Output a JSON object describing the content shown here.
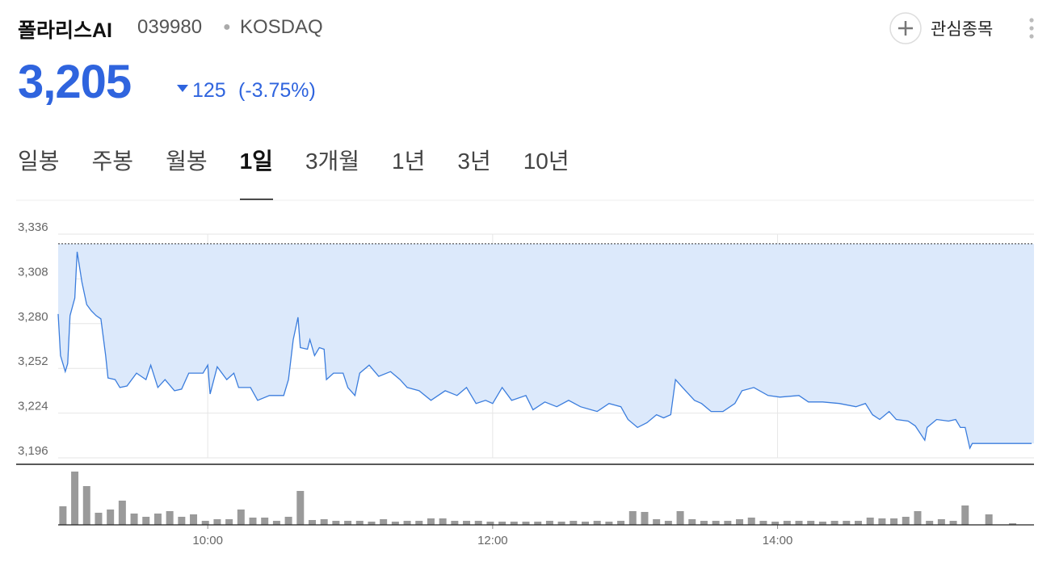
{
  "header": {
    "name": "폴라리스AI",
    "code": "039980",
    "market": "KOSDAQ",
    "watch_button": "관심종목"
  },
  "quote": {
    "price": "3,205",
    "change": "125",
    "change_percent": "(-3.75%)"
  },
  "tabs": [
    {
      "label": "일봉"
    },
    {
      "label": "주봉"
    },
    {
      "label": "월봉"
    },
    {
      "label": "1일",
      "selected": true
    },
    {
      "label": "3개월"
    },
    {
      "label": "1년"
    },
    {
      "label": "3년"
    },
    {
      "label": "10년"
    }
  ],
  "chart_data": [
    {
      "type": "line",
      "color": "#3b7ddd",
      "fill_color": "#dce9fb",
      "x": [
        537,
        538,
        540,
        541,
        542,
        544,
        545,
        547,
        549,
        551,
        553,
        555,
        557,
        558,
        561,
        563,
        566,
        570,
        574,
        576,
        579,
        582,
        586,
        589,
        592,
        598,
        600,
        601,
        604,
        608,
        611,
        613,
        618,
        621,
        626,
        632,
        634,
        636,
        638,
        639,
        642,
        643,
        645,
        647,
        649,
        650,
        653,
        657,
        659,
        662,
        664,
        668,
        672,
        677,
        681,
        684,
        689,
        694,
        700,
        705,
        709,
        713,
        717,
        720,
        724,
        728,
        734,
        737,
        742,
        747,
        752,
        757,
        764,
        769,
        774,
        777,
        781,
        785,
        789,
        792,
        795,
        797,
        800,
        805,
        808,
        812,
        817,
        822,
        825,
        830,
        836,
        841,
        849,
        853,
        859,
        866,
        873,
        877,
        880,
        883,
        887,
        890,
        895,
        898,
        902,
        903,
        907,
        912,
        915,
        917,
        919,
        921,
        922,
        947
      ],
      "values": [
        3286,
        3260,
        3250,
        3255,
        3285,
        3296,
        3325,
        3306,
        3292,
        3288,
        3285,
        3283,
        3260,
        3246,
        3245,
        3240,
        3241,
        3249,
        3245,
        3254,
        3240,
        3245,
        3238,
        3239,
        3249,
        3249,
        3254,
        3236,
        3253,
        3245,
        3249,
        3240,
        3240,
        3232,
        3235,
        3235,
        3245,
        3270,
        3284,
        3265,
        3264,
        3270,
        3260,
        3265,
        3264,
        3245,
        3249,
        3249,
        3240,
        3235,
        3249,
        3254,
        3247,
        3250,
        3245,
        3240,
        3238,
        3232,
        3238,
        3235,
        3240,
        3230,
        3232,
        3230,
        3240,
        3232,
        3235,
        3226,
        3231,
        3228,
        3232,
        3228,
        3225,
        3230,
        3228,
        3220,
        3215,
        3218,
        3223,
        3221,
        3223,
        3245,
        3240,
        3232,
        3230,
        3225,
        3225,
        3230,
        3238,
        3240,
        3235,
        3234,
        3235,
        3231,
        3231,
        3230,
        3228,
        3230,
        3223,
        3220,
        3225,
        3220,
        3219,
        3216,
        3207,
        3215,
        3220,
        3219,
        3220,
        3215,
        3215,
        3202,
        3205,
        3205
      ],
      "reference_line": 3330,
      "xlim": [
        537,
        948
      ],
      "ylim": [
        3196,
        3336
      ],
      "yticks": [
        {
          "value": 3196,
          "label": "3,196"
        },
        {
          "value": 3224,
          "label": "3,224"
        },
        {
          "value": 3252,
          "label": "3,252"
        },
        {
          "value": 3280,
          "label": "3,280"
        },
        {
          "value": 3308,
          "label": "3,308"
        },
        {
          "value": 3336,
          "label": "3,336"
        }
      ],
      "xticks": [
        {
          "value": 600,
          "label": "10:00"
        },
        {
          "value": 720,
          "label": "12:00"
        },
        {
          "value": 840,
          "label": "14:00"
        }
      ],
      "grid": true
    },
    {
      "type": "bar",
      "color": "#9a9a9a",
      "xlim": [
        537,
        948
      ],
      "x": [
        539,
        544,
        549,
        554,
        559,
        564,
        569,
        574,
        579,
        584,
        589,
        594,
        599,
        604,
        609,
        614,
        619,
        624,
        629,
        634,
        639,
        644,
        649,
        654,
        659,
        664,
        669,
        674,
        679,
        684,
        689,
        694,
        699,
        704,
        709,
        714,
        719,
        724,
        729,
        734,
        739,
        744,
        749,
        754,
        759,
        764,
        769,
        774,
        779,
        784,
        789,
        794,
        799,
        804,
        809,
        814,
        819,
        824,
        829,
        834,
        839,
        844,
        849,
        854,
        859,
        864,
        869,
        874,
        879,
        884,
        889,
        894,
        899,
        904,
        909,
        914,
        919,
        924,
        929,
        934,
        939
      ],
      "values": [
        23,
        66,
        48,
        15,
        19,
        30,
        14,
        10,
        14,
        17,
        10,
        13,
        5,
        7,
        7,
        19,
        9,
        9,
        5,
        10,
        42,
        6,
        7,
        5,
        5,
        5,
        4,
        7,
        4,
        5,
        5,
        8,
        8,
        5,
        5,
        5,
        4,
        4,
        4,
        4,
        4,
        5,
        4,
        5,
        4,
        5,
        4,
        5,
        17,
        16,
        7,
        5,
        17,
        7,
        5,
        5,
        5,
        7,
        9,
        5,
        4,
        5,
        5,
        5,
        4,
        5,
        5,
        5,
        9,
        8,
        8,
        10,
        17,
        5,
        7,
        5,
        24,
        0,
        13,
        0,
        2
      ]
    }
  ]
}
